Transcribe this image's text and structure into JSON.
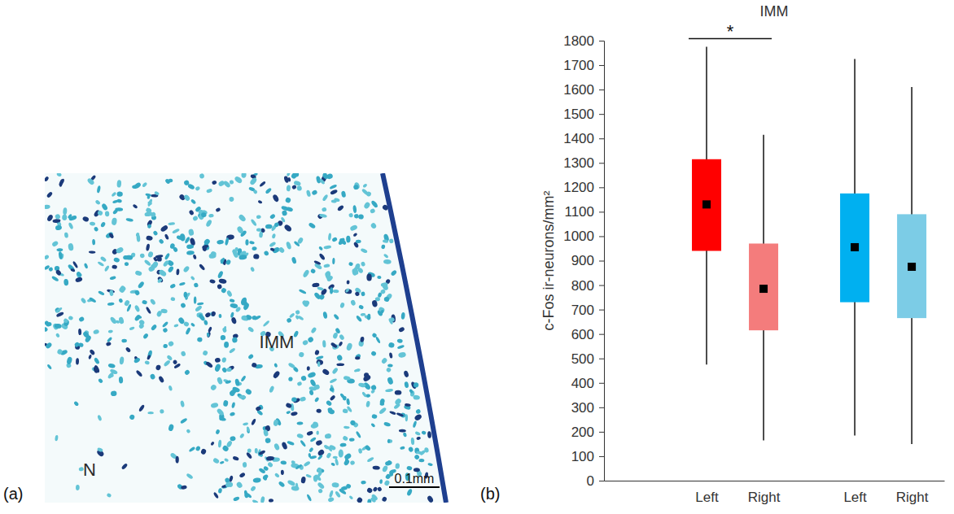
{
  "chart_data": {
    "type": "box",
    "title": "IMM",
    "panel_label": "(b)",
    "y_label": "c-Fos ir-neurons/mm²",
    "categories": [
      "Left",
      "Right",
      "Left",
      "Right"
    ],
    "colors": [
      "#ff0000",
      "#f47c7c",
      "#00b0f0",
      "#7ccce6"
    ],
    "whisker_low": [
      475,
      165,
      185,
      150
    ],
    "q1": [
      940,
      615,
      730,
      665
    ],
    "q3": [
      1315,
      970,
      1175,
      1090
    ],
    "whisker_high": [
      1775,
      1415,
      1725,
      1610
    ],
    "mean": [
      1130,
      785,
      955,
      875
    ],
    "significance": [
      {
        "from": 0,
        "to": 1,
        "label": "*"
      }
    ],
    "ylim": [
      0,
      1800
    ],
    "yticks": [
      0,
      100,
      200,
      300,
      400,
      500,
      600,
      700,
      800,
      900,
      1000,
      1100,
      1200,
      1300,
      1400,
      1500,
      1600,
      1700,
      1800
    ],
    "grid": false
  },
  "micrograph": {
    "panel_label": "(a)",
    "region_labels": [
      "IMM",
      "N"
    ],
    "scale_bar_label": "0.1mm"
  }
}
